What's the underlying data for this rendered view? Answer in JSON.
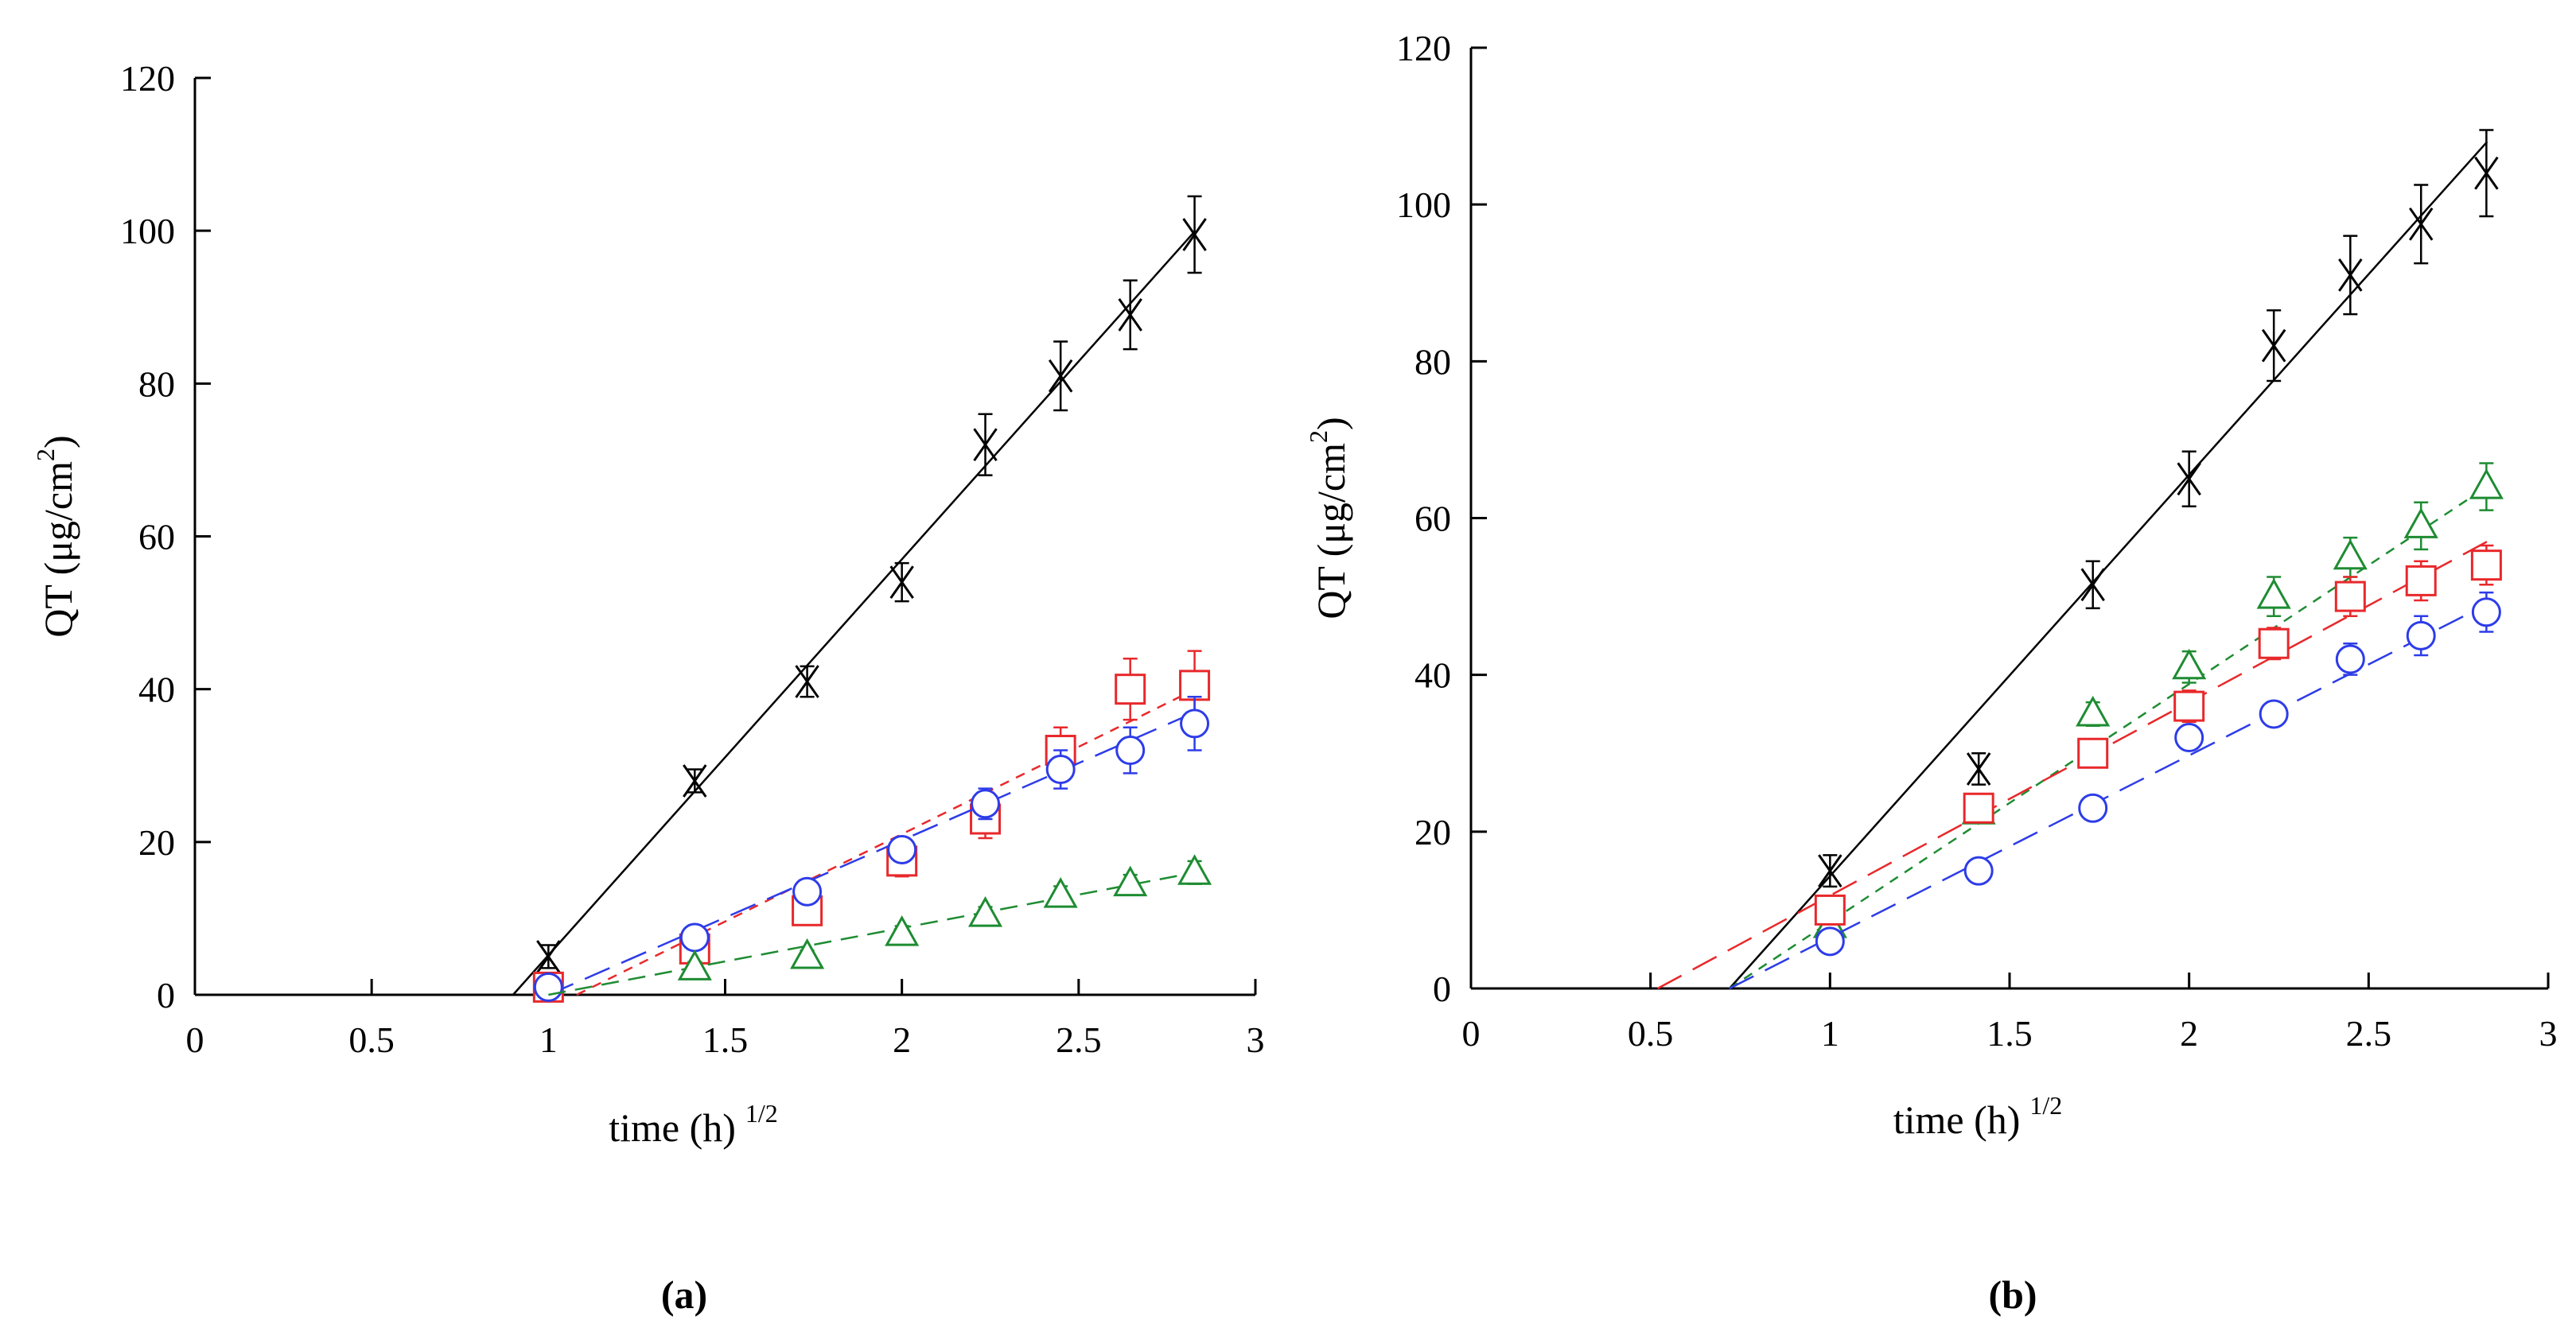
{
  "chart_data": [
    {
      "type": "scatter",
      "panel_label": "(a)",
      "xlabel": "time (h)",
      "xlabel_sup": "1/2",
      "ylabel": "QT (μg/cm",
      "ylabel_sup": "2",
      "ylabel_tail": ")",
      "xlim": [
        0,
        3
      ],
      "ylim": [
        0,
        120
      ],
      "xticks": [
        0,
        0.5,
        1,
        1.5,
        2,
        2.5,
        3
      ],
      "yticks": [
        0,
        20,
        40,
        60,
        80,
        100,
        120
      ],
      "xtick_labels": [
        "0",
        "0.5",
        "1",
        "1.5",
        "2",
        "2.5",
        "3"
      ],
      "ytick_labels": [
        "0",
        "20",
        "40",
        "60",
        "80",
        "100",
        "120"
      ],
      "grid": false,
      "series": [
        {
          "marker": "cross",
          "color": "#000000",
          "line_style": "solid",
          "x": [
            1.0,
            1.414,
            1.732,
            2.0,
            2.236,
            2.449,
            2.646,
            2.828
          ],
          "y": [
            5,
            28,
            41,
            54,
            72,
            81,
            89,
            99.5
          ],
          "err": [
            1.5,
            1.5,
            2,
            2.5,
            4,
            4.5,
            4.5,
            5
          ],
          "fit": {
            "x": [
              0.9,
              2.83
            ],
            "y": [
              0,
              100
            ]
          }
        },
        {
          "marker": "square",
          "color": "#e8282b",
          "line_style": "short-dash",
          "x": [
            1.0,
            1.414,
            1.732,
            2.0,
            2.236,
            2.449,
            2.646,
            2.828
          ],
          "y": [
            1,
            6,
            11,
            17.5,
            23,
            32,
            40,
            40.5
          ],
          "err": [
            0.8,
            1,
            1.5,
            2,
            2.5,
            3,
            4,
            4.5
          ],
          "fit": {
            "x": [
              1.08,
              2.83
            ],
            "y": [
              0,
              40
            ]
          }
        },
        {
          "marker": "circle",
          "color": "#2d3ce8",
          "line_style": "long-dash",
          "x": [
            1.0,
            1.414,
            1.732,
            2.0,
            2.236,
            2.449,
            2.646,
            2.828
          ],
          "y": [
            1,
            7.5,
            13.5,
            19,
            25,
            29.5,
            32,
            35.5
          ],
          "err": [
            0.8,
            1,
            1,
            1.5,
            2,
            2.5,
            3,
            3.5
          ],
          "fit": {
            "x": [
              1.0,
              2.83
            ],
            "y": [
              0,
              37
            ]
          }
        },
        {
          "marker": "triangle",
          "color": "#1e8c32",
          "line_style": "dash",
          "x": [
            1.414,
            1.732,
            2.0,
            2.236,
            2.449,
            2.646,
            2.828
          ],
          "y": [
            3.5,
            5,
            8,
            10.5,
            13,
            14.5,
            16
          ],
          "err": [
            0.8,
            0.8,
            1,
            1,
            1.2,
            1.2,
            1.5
          ],
          "fit": {
            "x": [
              1.0,
              2.83
            ],
            "y": [
              0,
              16
            ]
          }
        }
      ]
    },
    {
      "type": "scatter",
      "panel_label": "(b)",
      "xlabel": "time (h)",
      "xlabel_sup": "1/2",
      "ylabel": "QT (μg/cm",
      "ylabel_sup": "2",
      "ylabel_tail": ")",
      "xlim": [
        0,
        3
      ],
      "ylim": [
        0,
        120
      ],
      "xticks": [
        0,
        0.5,
        1,
        1.5,
        2,
        2.5,
        3
      ],
      "yticks": [
        0,
        20,
        40,
        60,
        80,
        100,
        120
      ],
      "xtick_labels": [
        "0",
        "0.5",
        "1",
        "1.5",
        "2",
        "2.5",
        "3"
      ],
      "ytick_labels": [
        "0",
        "20",
        "40",
        "60",
        "80",
        "100",
        "120"
      ],
      "grid": false,
      "series": [
        {
          "marker": "cross",
          "color": "#000000",
          "line_style": "solid",
          "x": [
            1.0,
            1.414,
            1.732,
            2.0,
            2.236,
            2.449,
            2.646,
            2.828
          ],
          "y": [
            15,
            28,
            51.5,
            65,
            82,
            91,
            97.5,
            104
          ],
          "err": [
            2,
            2,
            3,
            3.5,
            4.5,
            5,
            5,
            5.5
          ],
          "fit": {
            "x": [
              0.72,
              2.83
            ],
            "y": [
              0,
              108
            ]
          }
        },
        {
          "marker": "triangle",
          "color": "#1e8c32",
          "line_style": "short-dash",
          "x": [
            1.0,
            1.414,
            1.732,
            2.0,
            2.236,
            2.449,
            2.646,
            2.828
          ],
          "y": [
            8,
            22.5,
            35,
            41,
            50,
            55,
            59,
            64
          ],
          "err": [
            1,
            1,
            1.5,
            2,
            2.5,
            2.5,
            3,
            3
          ],
          "fit": {
            "x": [
              0.72,
              2.83
            ],
            "y": [
              0,
              64
            ]
          }
        },
        {
          "marker": "square",
          "color": "#e8282b",
          "line_style": "long-dash",
          "x": [
            1.0,
            1.414,
            1.732,
            2.0,
            2.236,
            2.449,
            2.646,
            2.828
          ],
          "y": [
            10,
            23,
            30,
            36,
            44,
            50,
            52,
            54
          ],
          "err": [
            1,
            1,
            1.5,
            2,
            2,
            2.5,
            2.5,
            2.5
          ],
          "fit": {
            "x": [
              0.52,
              2.83
            ],
            "y": [
              0,
              57
            ]
          }
        },
        {
          "marker": "circle",
          "color": "#2d3ce8",
          "line_style": "long-dash",
          "x": [
            1.0,
            1.414,
            1.732,
            2.0,
            2.236,
            2.449,
            2.646,
            2.828
          ],
          "y": [
            6,
            15,
            23,
            32,
            35,
            42,
            45,
            48
          ],
          "err": [
            1,
            1,
            1,
            1.5,
            1.5,
            2,
            2.5,
            2.5
          ],
          "fit": {
            "x": [
              0.72,
              2.83
            ],
            "y": [
              0,
              49
            ]
          }
        }
      ]
    }
  ]
}
